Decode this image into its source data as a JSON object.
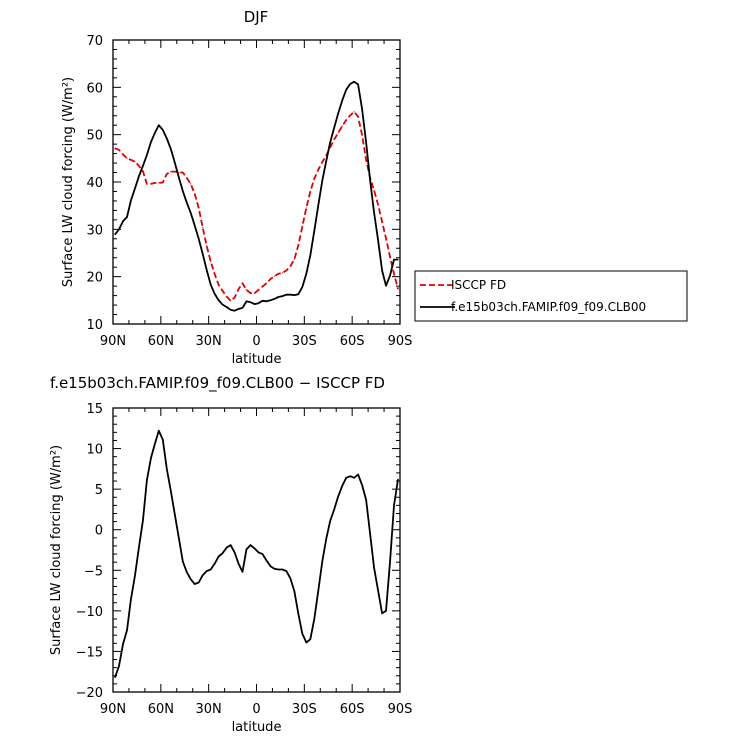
{
  "chart_data": [
    {
      "type": "line",
      "title": "DJF",
      "xlabel": "latitude",
      "ylabel": "Surface LW cloud forcing (W/m²)",
      "xlim": [
        -90,
        90
      ],
      "ylim": [
        10,
        70
      ],
      "x_tick_values": [
        -90,
        -60,
        -30,
        0,
        30,
        60,
        90
      ],
      "x_tick_labels": [
        "90N",
        "60N",
        "30N",
        "0",
        "30S",
        "60S",
        "90S"
      ],
      "y_tick_values": [
        10,
        20,
        30,
        40,
        50,
        60,
        70
      ],
      "y_tick_labels": [
        "10",
        "20",
        "30",
        "40",
        "50",
        "60",
        "70"
      ],
      "legend_position": "right",
      "series": [
        {
          "name": "ISCCP FD",
          "color": "#e00000",
          "dash": true,
          "x": [
            -88.75,
            -86.25,
            -83.75,
            -81.25,
            -78.75,
            -76.25,
            -73.75,
            -71.25,
            -68.75,
            -66.25,
            -63.75,
            -61.25,
            -58.75,
            -56.25,
            -53.75,
            -51.25,
            -48.75,
            -46.25,
            -43.75,
            -41.25,
            -38.75,
            -36.25,
            -33.75,
            -31.25,
            -28.75,
            -26.25,
            -23.75,
            -21.25,
            -18.75,
            -16.25,
            -13.75,
            -11.25,
            -8.75,
            -6.25,
            -3.75,
            -1.25,
            1.25,
            3.75,
            6.25,
            8.75,
            11.25,
            13.75,
            16.25,
            18.75,
            21.25,
            23.75,
            26.25,
            28.75,
            31.25,
            33.75,
            36.25,
            38.75,
            41.25,
            43.75,
            46.25,
            48.75,
            51.25,
            53.75,
            56.25,
            58.75,
            61.25,
            63.75,
            66.25,
            68.75,
            71.25,
            73.75,
            76.25,
            78.75,
            81.25,
            83.75,
            86.25,
            88.75
          ],
          "y": [
            47.1,
            46.8,
            45.8,
            45.0,
            44.7,
            44.3,
            43.4,
            42.3,
            39.6,
            39.6,
            39.8,
            39.8,
            39.9,
            41.7,
            42.2,
            42.2,
            42.0,
            42.0,
            40.9,
            39.6,
            37.5,
            34.5,
            30.4,
            26.5,
            23.2,
            20.6,
            18.3,
            17.0,
            15.8,
            14.9,
            15.6,
            17.4,
            18.6,
            17.2,
            16.5,
            16.5,
            17.2,
            17.9,
            18.6,
            19.5,
            20.1,
            20.6,
            20.8,
            21.3,
            22.2,
            23.7,
            26.7,
            30.6,
            34.5,
            38.0,
            40.7,
            42.6,
            44.2,
            45.6,
            47.3,
            49.0,
            50.4,
            51.8,
            53.1,
            54.1,
            54.8,
            53.8,
            49.9,
            44.7,
            40.9,
            38.2,
            35.2,
            31.6,
            28.1,
            24.2,
            20.6,
            17.4
          ]
        },
        {
          "name": "f.e15b03ch.FAMIP.f09_f09.CLB00",
          "color": "#000000",
          "dash": false,
          "x": [
            -88.75,
            -86.25,
            -83.75,
            -81.25,
            -78.75,
            -76.25,
            -73.75,
            -71.25,
            -68.75,
            -66.25,
            -63.75,
            -61.25,
            -58.75,
            -56.25,
            -53.75,
            -51.25,
            -48.75,
            -46.25,
            -43.75,
            -41.25,
            -38.75,
            -36.25,
            -33.75,
            -31.25,
            -28.75,
            -26.25,
            -23.75,
            -21.25,
            -18.75,
            -16.25,
            -13.75,
            -11.25,
            -8.75,
            -6.25,
            -3.75,
            -1.25,
            1.25,
            3.75,
            6.25,
            8.75,
            11.25,
            13.75,
            16.25,
            18.75,
            21.25,
            23.75,
            26.25,
            28.75,
            31.25,
            33.75,
            36.25,
            38.75,
            41.25,
            43.75,
            46.25,
            48.75,
            51.25,
            53.75,
            56.25,
            58.75,
            61.25,
            63.75,
            66.25,
            68.75,
            71.25,
            73.75,
            76.25,
            78.75,
            81.25,
            83.75,
            86.25,
            88.75
          ],
          "y": [
            28.9,
            30.0,
            31.7,
            32.6,
            36.1,
            38.6,
            41.2,
            43.4,
            45.7,
            48.4,
            50.4,
            52.0,
            51.0,
            49.2,
            47.0,
            44.1,
            41.0,
            38.1,
            35.7,
            33.5,
            30.8,
            28.0,
            24.8,
            21.4,
            18.3,
            16.4,
            15.0,
            14.1,
            13.6,
            13.0,
            12.8,
            13.2,
            13.4,
            14.8,
            14.6,
            14.2,
            14.4,
            14.9,
            14.8,
            15.0,
            15.3,
            15.7,
            15.9,
            16.2,
            16.2,
            16.1,
            16.3,
            17.8,
            20.6,
            24.5,
            29.7,
            35.1,
            40.3,
            44.5,
            48.4,
            51.5,
            54.5,
            57.2,
            59.5,
            60.7,
            61.2,
            60.6,
            55.4,
            48.4,
            40.4,
            33.5,
            27.7,
            21.3,
            18.1,
            20.2,
            23.6,
            23.6
          ]
        }
      ]
    },
    {
      "type": "line",
      "title": "f.e15b03ch.FAMIP.f09_f09.CLB00 − ISCCP FD",
      "xlabel": "latitude",
      "ylabel": "Surface LW cloud forcing (W/m²)",
      "xlim": [
        -90,
        90
      ],
      "ylim": [
        -20,
        15
      ],
      "x_tick_values": [
        -90,
        -60,
        -30,
        0,
        30,
        60,
        90
      ],
      "x_tick_labels": [
        "90N",
        "60N",
        "30N",
        "0",
        "30S",
        "60S",
        "90S"
      ],
      "y_tick_values": [
        -20,
        -15,
        -10,
        -5,
        0,
        5,
        10,
        15
      ],
      "y_tick_labels": [
        "−20",
        "−15",
        "−10",
        "−5",
        "0",
        "5",
        "10",
        "15"
      ],
      "series": [
        {
          "name": "",
          "color": "#000000",
          "dash": false,
          "x": [
            -88.75,
            -86.25,
            -83.75,
            -81.25,
            -78.75,
            -76.25,
            -73.75,
            -71.25,
            -68.75,
            -66.25,
            -63.75,
            -61.25,
            -58.75,
            -56.25,
            -53.75,
            -51.25,
            -48.75,
            -46.25,
            -43.75,
            -41.25,
            -38.75,
            -36.25,
            -33.75,
            -31.25,
            -28.75,
            -26.25,
            -23.75,
            -21.25,
            -18.75,
            -16.25,
            -13.75,
            -11.25,
            -8.75,
            -6.25,
            -3.75,
            -1.25,
            1.25,
            3.75,
            6.25,
            8.75,
            11.25,
            13.75,
            16.25,
            18.75,
            21.25,
            23.75,
            26.25,
            28.75,
            31.25,
            33.75,
            36.25,
            38.75,
            41.25,
            43.75,
            46.25,
            48.75,
            51.25,
            53.75,
            56.25,
            58.75,
            61.25,
            63.75,
            66.25,
            68.75,
            71.25,
            73.75,
            76.25,
            78.75,
            81.25,
            83.75,
            86.25,
            88.75
          ],
          "y": [
            -18.2,
            -16.8,
            -14.1,
            -12.4,
            -8.6,
            -5.7,
            -2.2,
            1.1,
            6.1,
            8.8,
            10.6,
            12.2,
            11.1,
            7.5,
            4.8,
            1.9,
            -1.0,
            -3.9,
            -5.2,
            -6.1,
            -6.7,
            -6.5,
            -5.6,
            -5.1,
            -4.9,
            -4.2,
            -3.3,
            -2.9,
            -2.2,
            -1.9,
            -2.8,
            -4.2,
            -5.2,
            -2.4,
            -1.9,
            -2.3,
            -2.8,
            -3.0,
            -3.8,
            -4.5,
            -4.8,
            -4.9,
            -4.9,
            -5.1,
            -6.0,
            -7.6,
            -10.4,
            -12.8,
            -13.9,
            -13.5,
            -11.0,
            -7.5,
            -3.9,
            -1.1,
            1.1,
            2.5,
            4.1,
            5.4,
            6.4,
            6.6,
            6.4,
            6.8,
            5.5,
            3.7,
            -0.5,
            -4.7,
            -7.5,
            -10.3,
            -10.0,
            -4.0,
            3.0,
            6.2
          ]
        }
      ]
    }
  ]
}
